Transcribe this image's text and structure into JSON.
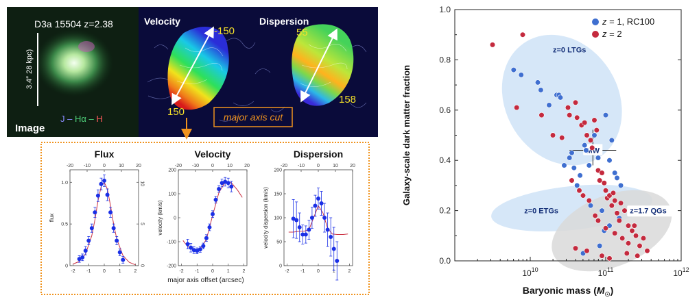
{
  "left_panel": {
    "object_label": "D3a 15504 z=2.38",
    "scale_label": "3.4″ 28 kpc)",
    "image_label": "Image",
    "color_key": {
      "j": "J",
      "dash1": " – ",
      "ha": "Hα",
      "dash2": " – ",
      "h": "H",
      "j_color": "#8a8cff",
      "ha_color": "#4fd07a",
      "h_color": "#ff5a5a"
    },
    "velocity_title": "Velocity",
    "dispersion_title": "Dispersion",
    "velocity_top_value": "-150",
    "velocity_bottom_value": "150",
    "dispersion_top_value": "55",
    "dispersion_bottom_value": "158",
    "cut_label": "major axis cut",
    "shared_xlabel": "major axis offset (arcsec)",
    "accent_color": "#f0931e",
    "value_label_color": "#f5e12a"
  },
  "chart_data": [
    {
      "type": "scatter",
      "title": "Flux",
      "xlabel": "",
      "ylabel": "flux",
      "ylabel_right": "",
      "xlim": [
        -2.2,
        2.2
      ],
      "ylim": [
        0,
        1.15
      ],
      "xticks": [
        -2,
        -1,
        0,
        1,
        2
      ],
      "yticks": [
        0,
        0.5,
        1.0
      ],
      "ytick_labels": [
        "0",
        "0.5",
        "1.0"
      ],
      "top_xlim": [
        -20,
        20
      ],
      "top_xticks": [
        -20,
        -10,
        0,
        10,
        20
      ],
      "right_ylim": [
        0,
        11.5
      ],
      "right_yticks": [
        0,
        5,
        10
      ],
      "points": {
        "x": [
          -1.6,
          -1.4,
          -1.2,
          -1.0,
          -0.8,
          -0.6,
          -0.4,
          -0.2,
          0.0,
          0.2,
          0.4,
          0.6,
          0.8,
          1.0,
          1.2
        ],
        "y": [
          0.08,
          0.1,
          0.18,
          0.3,
          0.45,
          0.64,
          0.84,
          0.98,
          1.02,
          0.85,
          0.64,
          0.45,
          0.3,
          0.16,
          0.07
        ],
        "err": [
          0.04,
          0.04,
          0.05,
          0.05,
          0.05,
          0.06,
          0.07,
          0.07,
          0.07,
          0.07,
          0.06,
          0.05,
          0.05,
          0.04,
          0.04
        ]
      },
      "model": {
        "x": [
          -2.0,
          -1.6,
          -1.2,
          -0.8,
          -0.6,
          -0.4,
          -0.2,
          0.0,
          0.2,
          0.4,
          0.6,
          0.8,
          1.2,
          1.6,
          2.0
        ],
        "y": [
          0.02,
          0.05,
          0.14,
          0.36,
          0.55,
          0.78,
          0.95,
          1.0,
          0.92,
          0.72,
          0.5,
          0.32,
          0.12,
          0.04,
          0.01
        ]
      }
    },
    {
      "type": "scatter",
      "title": "Velocity",
      "xlabel": "",
      "ylabel": "velocity (km/s)",
      "xlim": [
        -2.2,
        2.2
      ],
      "ylim": [
        -200,
        200
      ],
      "xticks": [
        -2,
        -1,
        0,
        1,
        2
      ],
      "yticks": [
        -200,
        -100,
        0,
        100,
        200
      ],
      "ytick_labels": [
        "-200",
        "-100",
        "0",
        "100",
        "200"
      ],
      "top_xlim": [
        -20,
        20
      ],
      "top_xticks": [
        -20,
        -10,
        0,
        10,
        20
      ],
      "points": {
        "x": [
          -1.6,
          -1.4,
          -1.2,
          -1.0,
          -0.8,
          -0.6,
          -0.4,
          -0.2,
          0.0,
          0.2,
          0.4,
          0.6,
          0.8,
          1.0,
          1.2
        ],
        "y": [
          -110,
          -125,
          -135,
          -138,
          -132,
          -118,
          -85,
          -40,
          15,
          75,
          120,
          145,
          150,
          145,
          130
        ],
        "err": [
          20,
          18,
          14,
          12,
          12,
          12,
          14,
          14,
          14,
          14,
          14,
          16,
          18,
          20,
          22
        ]
      },
      "model": {
        "x": [
          -1.9,
          -1.6,
          -1.2,
          -0.8,
          -0.4,
          0.0,
          0.4,
          0.8,
          1.2,
          1.6,
          1.9
        ],
        "y": [
          -95,
          -120,
          -136,
          -130,
          -90,
          10,
          105,
          148,
          146,
          115,
          85
        ]
      }
    },
    {
      "type": "scatter",
      "title": "Dispersion",
      "xlabel": "",
      "ylabel": "velocity dispersion (km/s)",
      "xlim": [
        -2.2,
        2.2
      ],
      "ylim": [
        0,
        200
      ],
      "xticks": [
        -2,
        -1,
        0,
        1,
        2
      ],
      "yticks": [
        0,
        50,
        100,
        150,
        200
      ],
      "ytick_labels": [
        "0",
        "50",
        "100",
        "150",
        "200"
      ],
      "top_xlim": [
        -20,
        20
      ],
      "top_xticks": [
        -20,
        -10,
        0,
        10,
        20
      ],
      "points": {
        "x": [
          -1.6,
          -1.4,
          -1.2,
          -1.0,
          -0.8,
          -0.6,
          -0.4,
          -0.2,
          0.0,
          0.2,
          0.4,
          0.6,
          0.8,
          1.0,
          1.2
        ],
        "y": [
          98,
          95,
          80,
          65,
          65,
          75,
          100,
          125,
          140,
          130,
          100,
          75,
          60,
          35,
          10
        ],
        "err": [
          40,
          38,
          30,
          20,
          18,
          20,
          22,
          22,
          22,
          25,
          30,
          35,
          40,
          45,
          40
        ]
      },
      "model": {
        "x": [
          -1.9,
          -1.6,
          -1.2,
          -0.9,
          -0.6,
          -0.3,
          0.0,
          0.3,
          0.6,
          0.9,
          1.2,
          1.6,
          1.9
        ],
        "y": [
          70,
          70,
          72,
          72,
          75,
          100,
          125,
          110,
          78,
          66,
          65,
          65,
          66
        ]
      }
    },
    {
      "type": "scatter",
      "title": "",
      "xlabel": "Baryonic mass (",
      "xlabel_unit": "M",
      "xlabel_unit_sub": "☉",
      "xlabel_close": ")",
      "ylabel": "Galaxy-scale dark matter fraction",
      "xscale": "log",
      "xlim": [
        1000000000.0,
        1000000000000.0
      ],
      "ylim": [
        0,
        1.0
      ],
      "xticks": [
        10,
        11,
        12
      ],
      "xtick_base": "10",
      "yticks": [
        0,
        0.2,
        0.4,
        0.6,
        0.8,
        1.0
      ],
      "ytick_labels": [
        "0.0",
        "0.2",
        "0.4",
        "0.6",
        "0.8",
        "1.0"
      ],
      "grid": false,
      "legend_position": "top-right",
      "series": [
        {
          "name_prefix": "z",
          "name_suffix": " = 1, RC100",
          "color": "#3f6fd0",
          "x_log10": [
            9.78,
            9.88,
            10.1,
            10.14,
            10.25,
            10.35,
            10.38,
            10.4,
            10.45,
            10.52,
            10.55,
            10.58,
            10.62,
            10.66,
            10.72,
            10.74,
            10.78,
            10.8,
            10.85,
            10.9,
            10.95,
            11.0,
            11.05,
            11.08,
            11.12,
            11.15,
            11.18,
            11.2,
            11.05,
            10.98,
            10.7,
            10.92
          ],
          "y": [
            0.76,
            0.74,
            0.71,
            0.68,
            0.62,
            0.66,
            0.66,
            0.65,
            0.38,
            0.41,
            0.43,
            0.37,
            0.3,
            0.34,
            0.46,
            0.44,
            0.38,
            0.22,
            0.5,
            0.41,
            0.2,
            0.58,
            0.4,
            0.48,
            0.35,
            0.33,
            0.17,
            0.3,
            0.14,
            0.12,
            0.03,
            0.06
          ]
        },
        {
          "name_prefix": "z",
          "name_suffix": " = 2",
          "color": "#c42a3e",
          "x_log10": [
            9.5,
            9.9,
            9.82,
            10.15,
            10.3,
            10.42,
            10.5,
            10.52,
            10.6,
            10.62,
            10.68,
            10.72,
            10.75,
            10.8,
            10.82,
            10.85,
            10.88,
            10.9,
            10.92,
            10.95,
            10.98,
            11.0,
            11.02,
            11.05,
            11.08,
            11.1,
            11.12,
            11.15,
            11.18,
            11.2,
            11.25,
            11.3,
            11.35,
            11.4,
            11.45,
            11.5,
            11.55,
            10.55,
            10.65,
            10.7,
            10.78,
            10.86,
            10.9,
            11.0,
            11.12,
            11.22,
            11.3,
            11.38,
            10.6,
            10.75,
            10.95,
            11.05,
            11.28,
            11.42
          ],
          "y": [
            0.86,
            0.9,
            0.61,
            0.58,
            0.5,
            0.49,
            0.61,
            0.58,
            0.63,
            0.57,
            0.54,
            0.55,
            0.5,
            0.48,
            0.45,
            0.56,
            0.52,
            0.36,
            0.32,
            0.35,
            0.31,
            0.28,
            0.25,
            0.26,
            0.22,
            0.27,
            0.24,
            0.19,
            0.16,
            0.23,
            0.2,
            0.14,
            0.12,
            0.1,
            0.06,
            0.09,
            0.04,
            0.32,
            0.28,
            0.26,
            0.24,
            0.18,
            0.16,
            0.13,
            0.11,
            0.09,
            0.07,
            0.14,
            0.05,
            0.04,
            0.02,
            0.01,
            0.03,
            0.02
          ]
        }
      ],
      "regions": [
        {
          "label": "z=0 LTGs",
          "fill": "#cfe3f7"
        },
        {
          "label": "z=0 ETGs",
          "fill": "#cfe3f7"
        },
        {
          "label": "z=1.7 QGs",
          "fill": "#d9d9d9"
        }
      ],
      "annotation": "MW",
      "annotation_point": {
        "x_log10": 10.83,
        "y": 0.44
      }
    }
  ]
}
